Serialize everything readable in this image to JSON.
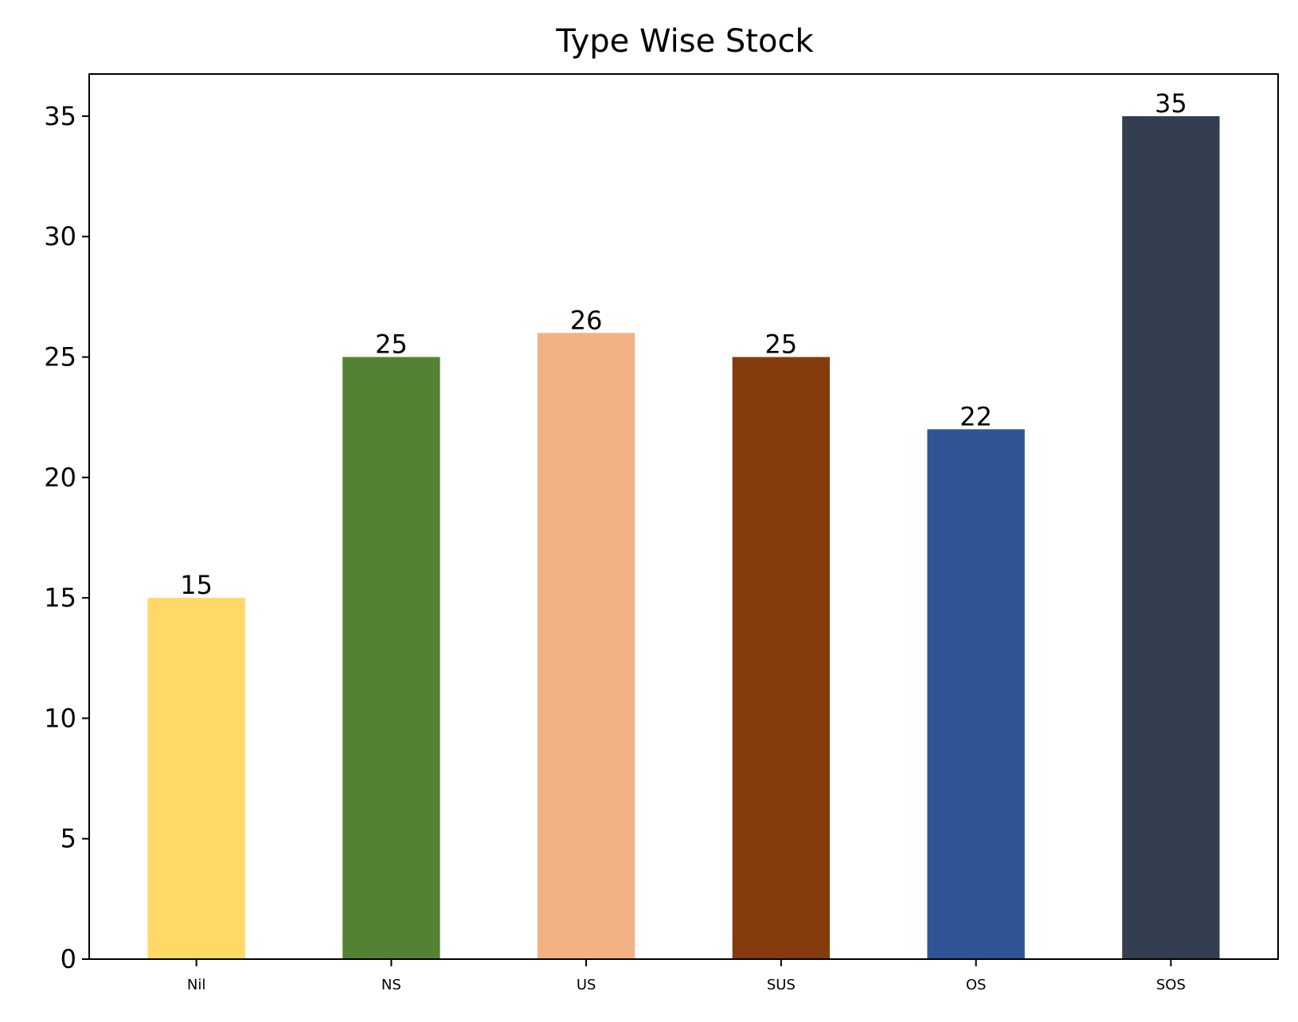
{
  "chart_data": {
    "type": "bar",
    "title": "Type Wise Stock",
    "xlabel": "",
    "ylabel": "",
    "categories": [
      "Nil",
      "NS",
      "US",
      "SUS",
      "OS",
      "SOS"
    ],
    "values": [
      15,
      25,
      26,
      25,
      22,
      35
    ],
    "data_labels": [
      "15",
      "25",
      "26",
      "25",
      "22",
      "35"
    ],
    "colors": [
      "#FFD966",
      "#548235",
      "#F4B183",
      "#843C0C",
      "#2F5597",
      "#333F50"
    ],
    "ylim": [
      0,
      36.75
    ],
    "yticks": [
      0,
      5,
      10,
      15,
      20,
      25,
      30,
      35
    ],
    "ytick_labels": [
      "0",
      "5",
      "10",
      "15",
      "20",
      "25",
      "30",
      "35"
    ],
    "grid": false,
    "legend": "none"
  }
}
